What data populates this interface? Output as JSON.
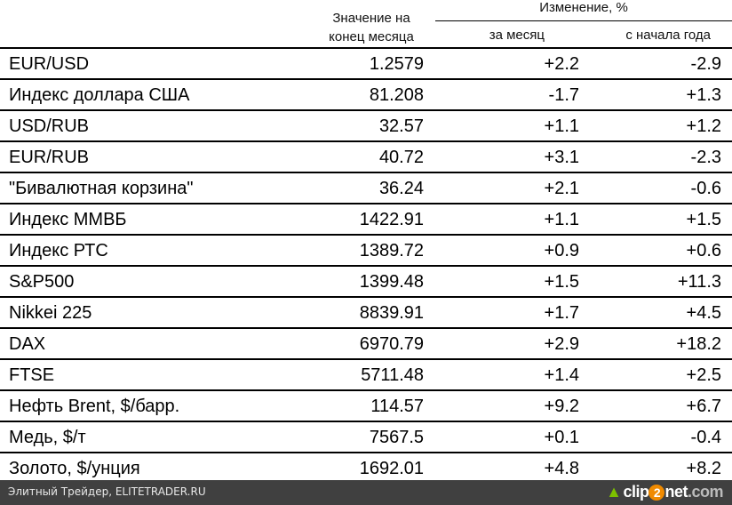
{
  "header": {
    "value_col": "Значение на конец месяца",
    "change_group": "Изменение, %",
    "month_col": "за месяц",
    "ytd_col": "с начала года"
  },
  "rows": [
    {
      "name": "EUR/USD",
      "value": "1.2579",
      "month": "+2.2",
      "ytd": "-2.9"
    },
    {
      "name": "Индекс доллара США",
      "value": "81.208",
      "month": "-1.7",
      "ytd": "+1.3"
    },
    {
      "name": "USD/RUB",
      "value": "32.57",
      "month": "+1.1",
      "ytd": "+1.2"
    },
    {
      "name": "EUR/RUB",
      "value": "40.72",
      "month": "+3.1",
      "ytd": "-2.3"
    },
    {
      "name": "\"Бивалютная корзина\"",
      "value": "36.24",
      "month": "+2.1",
      "ytd": "-0.6"
    },
    {
      "name": "Индекс ММВБ",
      "value": "1422.91",
      "month": "+1.1",
      "ytd": "+1.5"
    },
    {
      "name": "Индекс РТС",
      "value": "1389.72",
      "month": "+0.9",
      "ytd": "+0.6"
    },
    {
      "name": "S&P500",
      "value": "1399.48",
      "month": "+1.5",
      "ytd": "+11.3"
    },
    {
      "name": "Nikkei 225",
      "value": "8839.91",
      "month": "+1.7",
      "ytd": "+4.5"
    },
    {
      "name": "DAX",
      "value": "6970.79",
      "month": "+2.9",
      "ytd": "+18.2"
    },
    {
      "name": "FTSE",
      "value": "5711.48",
      "month": "+1.4",
      "ytd": "+2.5"
    },
    {
      "name": "Нефть Brent, $/барр.",
      "value": "114.57",
      "month": "+9.2",
      "ytd": "+6.7"
    },
    {
      "name": "Медь, $/т",
      "value": "7567.5",
      "month": "+0.1",
      "ytd": "-0.4"
    },
    {
      "name": "Золото, $/унция",
      "value": "1692.01",
      "month": "+4.8",
      "ytd": "+8.2"
    }
  ],
  "footer": {
    "source": "Элитный Трейдер, ELITETRADER.RU",
    "logo_a": "clip",
    "logo_b": "2",
    "logo_c": "net",
    "logo_d": ".com"
  }
}
